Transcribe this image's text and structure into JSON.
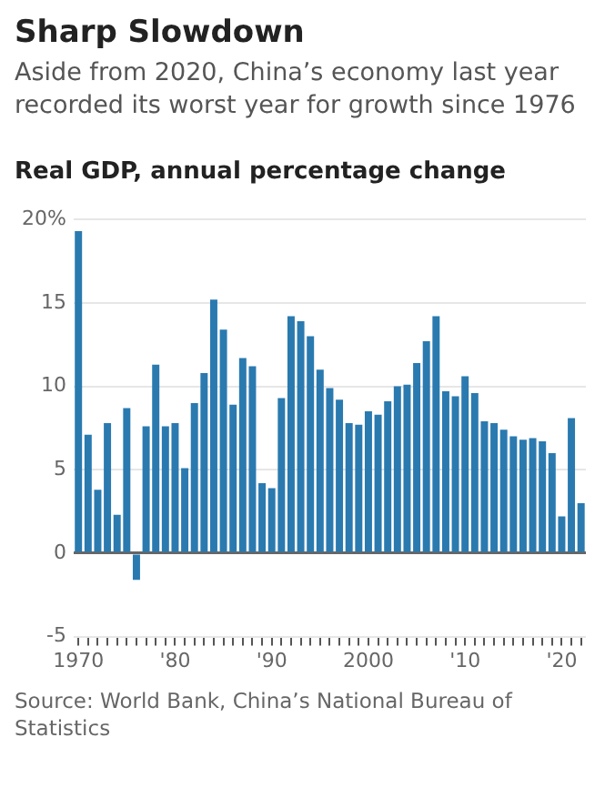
{
  "chart_data": {
    "type": "bar",
    "title": "Sharp Slowdown",
    "subtitle": "Aside from 2020, China’s economy last year recorded its worst year for growth since 1976",
    "ylabel": "Real GDP, annual percentage change",
    "annotations": [
      "Source: World Bank, China’s National Bureau of Statistics"
    ],
    "categories": [
      "1970",
      null,
      null,
      null,
      null,
      null,
      null,
      null,
      null,
      null,
      "'80",
      null,
      null,
      null,
      null,
      null,
      null,
      null,
      null,
      null,
      "'90",
      null,
      null,
      null,
      null,
      null,
      null,
      null,
      null,
      null,
      "2000",
      null,
      null,
      null,
      null,
      null,
      null,
      null,
      null,
      null,
      "'10",
      null,
      null,
      null,
      null,
      null,
      null,
      null,
      null,
      null,
      "'20",
      null,
      null
    ],
    "values": [
      19.3,
      7.1,
      3.8,
      7.8,
      2.3,
      8.7,
      -1.6,
      7.6,
      11.3,
      7.6,
      7.8,
      5.1,
      9.0,
      10.8,
      15.2,
      13.4,
      8.9,
      11.7,
      11.2,
      4.2,
      3.9,
      9.3,
      14.2,
      13.9,
      13.0,
      11.0,
      9.9,
      9.2,
      7.8,
      7.7,
      8.5,
      8.3,
      9.1,
      10.0,
      10.1,
      11.4,
      12.7,
      14.2,
      9.7,
      9.4,
      10.6,
      9.6,
      7.9,
      7.8,
      7.4,
      7.0,
      6.8,
      6.9,
      6.7,
      6.0,
      2.2,
      8.1,
      3.0
    ],
    "color": "#2a7ab0",
    "ylim": [
      -5,
      20
    ],
    "yticks": [
      -5,
      0,
      5,
      10,
      15,
      {
        "value": 20,
        "label": "20%"
      }
    ],
    "grid": "y"
  }
}
